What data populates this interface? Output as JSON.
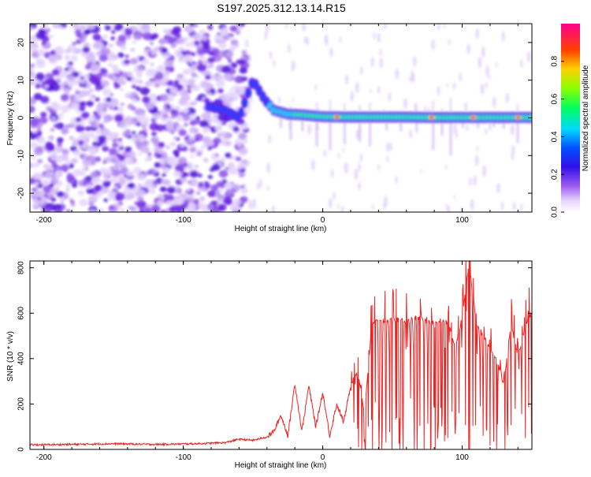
{
  "title": "S197.2025.312.13.14.R15",
  "chart_data": [
    {
      "type": "heatmap",
      "name": "spectrogram",
      "xlabel": "Height of straight line (km)",
      "ylabel": "Frequency (Hz)",
      "xlim": [
        -210,
        150
      ],
      "ylim": [
        -25,
        25
      ],
      "xticks": [
        -200,
        -100,
        0,
        100
      ],
      "xtick_labels": [
        "-200",
        "-100",
        "0",
        "100"
      ],
      "yticks": [
        -20,
        -10,
        0,
        10,
        20
      ],
      "ytick_labels": [
        "-20",
        "-10",
        "0",
        "10",
        "20"
      ],
      "colorbar": {
        "label": "Normalized spectral amplitude",
        "range": [
          0,
          1
        ],
        "ticks": [
          0.0,
          0.2,
          0.4,
          0.6,
          0.8
        ],
        "tick_labels": [
          "0.0",
          "0.2",
          "0.4",
          "0.6",
          "0.8"
        ],
        "colors": [
          "#ffffff",
          "#c8a8f0",
          "#5a10e0",
          "#0000ff",
          "#00e0ff",
          "#00ff40",
          "#b0ff00",
          "#ffc000",
          "#ff3000",
          "#ff0080"
        ]
      },
      "signal_trace": {
        "description_points_x": [
          -80,
          -70,
          -60,
          -50,
          -42,
          -35,
          -25,
          -15,
          0,
          20,
          40,
          60,
          80,
          100,
          120,
          140,
          150
        ],
        "description_points_y": [
          3,
          2,
          0,
          10,
          5,
          2,
          1,
          0.8,
          0.3,
          0.2,
          0.2,
          0.2,
          0.1,
          0.1,
          0.1,
          0.1,
          0.1
        ],
        "peak_intensity_x": [
          10,
          78,
          108,
          140
        ]
      }
    },
    {
      "type": "line",
      "name": "snr",
      "xlabel": "Height of straight line (km)",
      "ylabel": "SNR (10 * v/v)",
      "xlim": [
        -210,
        150
      ],
      "ylim": [
        0,
        830
      ],
      "xticks": [
        -200,
        -100,
        0,
        100
      ],
      "xtick_labels": [
        "-200",
        "-100",
        "0",
        "100"
      ],
      "yticks": [
        0,
        200,
        400,
        600,
        800
      ],
      "ytick_labels": [
        "0",
        "200",
        "400",
        "600",
        "800"
      ],
      "series": [
        {
          "name": "SNR",
          "color": "#ee2222",
          "x": [
            -210,
            -180,
            -150,
            -120,
            -90,
            -70,
            -60,
            -50,
            -40,
            -35,
            -30,
            -25,
            -20,
            -15,
            -10,
            -5,
            0,
            5,
            10,
            15,
            20,
            25,
            30,
            35,
            40,
            45,
            50,
            55,
            60,
            65,
            70,
            75,
            80,
            85,
            90,
            95,
            100,
            105,
            110,
            115,
            120,
            125,
            130,
            135,
            140,
            145,
            150
          ],
          "y": [
            20,
            22,
            25,
            22,
            25,
            30,
            45,
            40,
            55,
            80,
            150,
            60,
            290,
            80,
            280,
            100,
            250,
            60,
            200,
            120,
            280,
            350,
            150,
            540,
            580,
            560,
            570,
            570,
            560,
            575,
            580,
            560,
            560,
            570,
            555,
            450,
            580,
            820,
            560,
            500,
            450,
            390,
            280,
            560,
            410,
            540,
            600
          ]
        }
      ]
    }
  ]
}
